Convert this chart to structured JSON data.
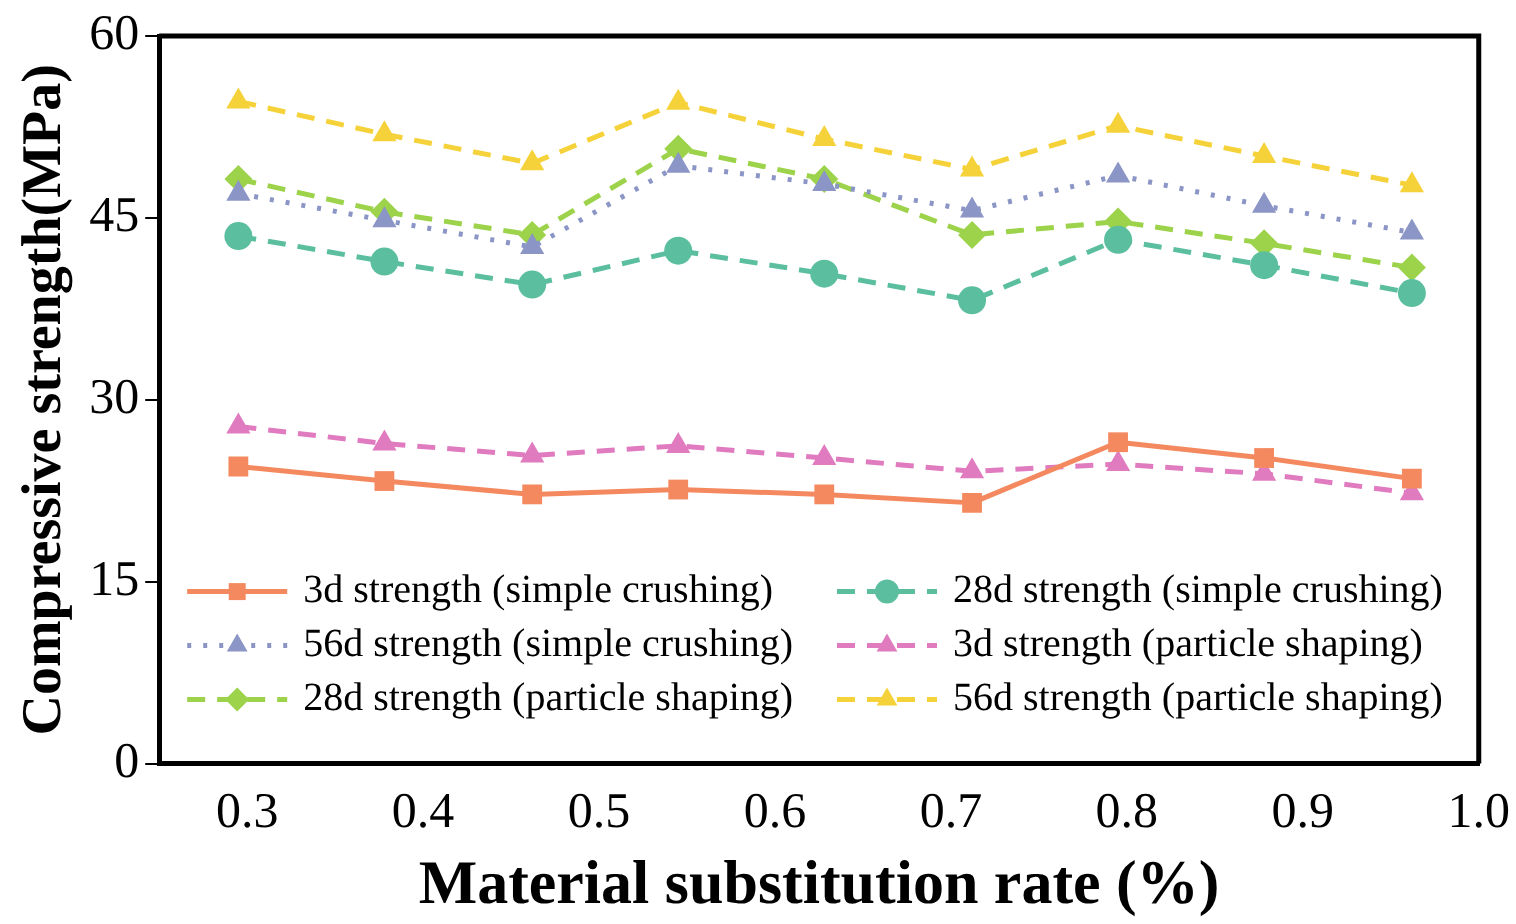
{
  "chart_data": {
    "type": "line",
    "xlabel": "Material substitution rate (%)",
    "ylabel": "Compressive strength(MPa)",
    "x": [
      0.295,
      0.378,
      0.462,
      0.545,
      0.628,
      0.712,
      0.795,
      0.878,
      0.962
    ],
    "xlim": [
      0.25,
      1.0
    ],
    "xticks": [
      {
        "value": 0.3,
        "label": "0.3"
      },
      {
        "value": 0.4,
        "label": "0.4"
      },
      {
        "value": 0.5,
        "label": "0.5"
      },
      {
        "value": 0.6,
        "label": "0.6"
      },
      {
        "value": 0.7,
        "label": "0.7"
      },
      {
        "value": 0.8,
        "label": "0.8"
      },
      {
        "value": 0.9,
        "label": "0.9"
      },
      {
        "value": 1.0,
        "label": "1.0"
      }
    ],
    "ylim": [
      0,
      60
    ],
    "yticks": [
      0,
      15,
      30,
      45,
      60
    ],
    "grid": false,
    "legend": "bottom",
    "series": [
      {
        "name": "3d strength (simple crushing)",
        "color": "#f4895f",
        "marker": "square",
        "line_style": "solid",
        "values": [
          24.5,
          23.3,
          22.2,
          22.6,
          22.2,
          21.5,
          26.5,
          25.2,
          23.5
        ]
      },
      {
        "name": "28d strength (simple crushing)",
        "color": "#5bbf9f",
        "marker": "circle",
        "line_style": "dashed",
        "values": [
          43.5,
          41.4,
          39.5,
          42.3,
          40.4,
          38.2,
          43.2,
          41.1,
          38.8
        ]
      },
      {
        "name": "56d strength (simple crushing)",
        "color": "#8c96c6",
        "marker": "triangle",
        "line_style": "dotted",
        "values": [
          47.0,
          44.8,
          42.6,
          49.3,
          47.8,
          45.6,
          48.5,
          46.0,
          43.8
        ]
      },
      {
        "name": "3d strength (particle shaping)",
        "color": "#e07bc0",
        "marker": "triangle",
        "line_style": "dashed",
        "values": [
          27.8,
          26.4,
          25.4,
          26.2,
          25.2,
          24.1,
          24.7,
          23.9,
          22.3
        ]
      },
      {
        "name": "28d strength (particle shaping)",
        "color": "#9cd34a",
        "marker": "diamond",
        "line_style": "dashed",
        "values": [
          48.2,
          45.5,
          43.6,
          50.7,
          48.2,
          43.6,
          44.7,
          42.9,
          40.9
        ]
      },
      {
        "name": "56d strength (particle shaping)",
        "color": "#f6d23a",
        "marker": "triangle",
        "line_style": "dashed",
        "values": [
          54.6,
          51.9,
          49.5,
          54.5,
          51.5,
          49.0,
          52.6,
          50.1,
          47.7
        ]
      }
    ]
  }
}
